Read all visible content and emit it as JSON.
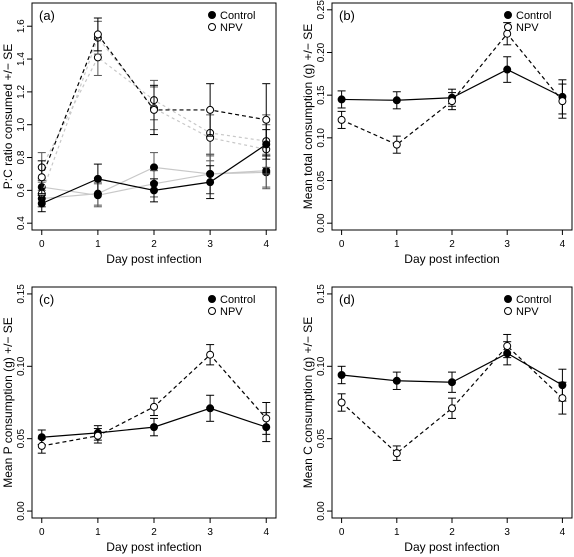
{
  "chart_data": [
    {
      "panel": "(a)",
      "type": "line",
      "ylabel": "P:C ratio consumed +/− SE",
      "xlabel": "Day post infection",
      "ylim": [
        0.4,
        1.7
      ],
      "yticks": [
        "0.4",
        "0.6",
        "0.8",
        "1.0",
        "1.2",
        "1.4",
        "1.6"
      ],
      "x": [
        0,
        1,
        2,
        3,
        4
      ],
      "xtick_labels": [
        "0",
        "1",
        "2",
        "3",
        "4"
      ],
      "legend": {
        "position": "top-right",
        "entries": [
          "Control",
          "NPV"
        ]
      },
      "series": [
        {
          "name": "Control",
          "style": "solid",
          "marker": "filled",
          "values": [
            0.52,
            0.67,
            0.6,
            0.65,
            0.88
          ],
          "se": [
            0.05,
            0.09,
            0.07,
            0.1,
            0.09
          ]
        },
        {
          "name": "NPV",
          "style": "dashed",
          "marker": "open",
          "values": [
            0.68,
            1.55,
            1.09,
            1.09,
            1.03
          ],
          "se": [
            0.1,
            0.1,
            0.15,
            0.16,
            0.22
          ]
        }
      ],
      "extra_series": [
        {
          "style": "solid-grey",
          "marker": "filled",
          "values": [
            0.55,
            0.58,
            0.74,
            0.7,
            0.71
          ],
          "se": [
            0.05,
            0.07,
            0.09,
            0.12,
            0.1
          ]
        },
        {
          "style": "solid-grey",
          "marker": "filled",
          "values": [
            0.62,
            0.57,
            0.64,
            0.7,
            0.72
          ],
          "se": [
            0.05,
            0.07,
            0.08,
            0.12,
            0.1
          ]
        },
        {
          "style": "dashed-grey",
          "marker": "open",
          "values": [
            0.74,
            1.41,
            1.15,
            0.95,
            0.9
          ],
          "se": [
            0.09,
            0.11,
            0.12,
            0.14,
            0.16
          ]
        },
        {
          "style": "dashed-grey",
          "marker": "open",
          "values": [
            0.58,
            1.53,
            1.1,
            0.92,
            0.85
          ],
          "se": [
            0.08,
            0.1,
            0.13,
            0.14,
            0.15
          ]
        }
      ]
    },
    {
      "panel": "(b)",
      "type": "line",
      "ylabel": "Mean total consumption (g) +/− SE",
      "xlabel": "Day post infection",
      "ylim": [
        0,
        0.25
      ],
      "yticks": [
        "0.00",
        "0.05",
        "0.10",
        "0.15",
        "0.20",
        "0.25"
      ],
      "x": [
        0,
        1,
        2,
        3,
        4
      ],
      "xtick_labels": [
        "0",
        "1",
        "2",
        "3",
        "4"
      ],
      "legend": {
        "position": "top-right",
        "entries": [
          "Control",
          "NPV"
        ]
      },
      "series": [
        {
          "name": "Control",
          "style": "solid",
          "marker": "filled",
          "values": [
            0.145,
            0.144,
            0.147,
            0.18,
            0.148
          ],
          "se": [
            0.01,
            0.01,
            0.01,
            0.015,
            0.02
          ]
        },
        {
          "name": "NPV",
          "style": "dashed",
          "marker": "open",
          "values": [
            0.121,
            0.092,
            0.143,
            0.222,
            0.143
          ],
          "se": [
            0.01,
            0.01,
            0.01,
            0.013,
            0.02
          ]
        }
      ]
    },
    {
      "panel": "(c)",
      "type": "line",
      "ylabel": "Mean P consumption (g) +/− SE",
      "xlabel": "Day post infection",
      "ylim": [
        0,
        0.15
      ],
      "yticks": [
        "0.00",
        "0.05",
        "0.10",
        "0.15"
      ],
      "x": [
        0,
        1,
        2,
        3,
        4
      ],
      "xtick_labels": [
        "0",
        "1",
        "2",
        "3",
        "4"
      ],
      "legend": {
        "position": "top-right",
        "entries": [
          "Control",
          "NPV"
        ]
      },
      "series": [
        {
          "name": "Control",
          "style": "solid",
          "marker": "filled",
          "values": [
            0.051,
            0.054,
            0.058,
            0.071,
            0.058
          ],
          "se": [
            0.005,
            0.005,
            0.006,
            0.009,
            0.01
          ]
        },
        {
          "name": "NPV",
          "style": "dashed",
          "marker": "open",
          "values": [
            0.045,
            0.052,
            0.072,
            0.108,
            0.064
          ],
          "se": [
            0.005,
            0.005,
            0.006,
            0.007,
            0.011
          ]
        }
      ]
    },
    {
      "panel": "(d)",
      "type": "line",
      "ylabel": "Mean C consumption (g) +/− SE",
      "xlabel": "Day post infection",
      "ylim": [
        0,
        0.15
      ],
      "yticks": [
        "0.00",
        "0.05",
        "0.10",
        "0.15"
      ],
      "x": [
        0,
        1,
        2,
        3,
        4
      ],
      "xtick_labels": [
        "0",
        "1",
        "2",
        "3",
        "4"
      ],
      "legend": {
        "position": "top-right",
        "entries": [
          "Control",
          "NPV"
        ]
      },
      "series": [
        {
          "name": "Control",
          "style": "solid",
          "marker": "filled",
          "values": [
            0.094,
            0.09,
            0.089,
            0.109,
            0.087
          ],
          "se": [
            0.006,
            0.006,
            0.007,
            0.008,
            0.011
          ]
        },
        {
          "name": "NPV",
          "style": "dashed",
          "marker": "open",
          "values": [
            0.075,
            0.04,
            0.071,
            0.114,
            0.078
          ],
          "se": [
            0.006,
            0.005,
            0.007,
            0.008,
            0.011
          ]
        }
      ]
    }
  ]
}
